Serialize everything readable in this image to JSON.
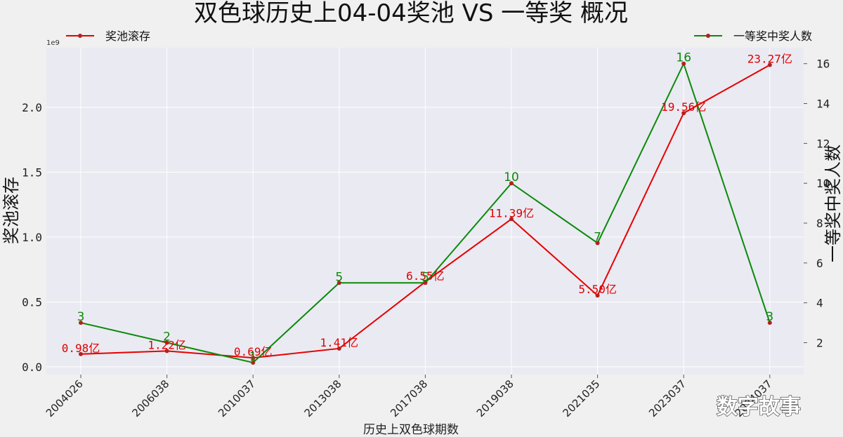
{
  "chart_data": {
    "type": "line",
    "title": "双色球历史上04-04奖池 VS 一等奖 概况",
    "xlabel": "历史上双色球期数",
    "ylabel_left": "奖池滚存",
    "ylabel_right": "一等奖中奖人数",
    "left_axis_scale_note": "1e9",
    "categories": [
      "2004026",
      "2006038",
      "2010037",
      "2013038",
      "2017038",
      "2019038",
      "2021035",
      "2023037",
      "2024037"
    ],
    "series": [
      {
        "name": "奖池滚存",
        "axis": "left",
        "color": "#e60000",
        "values": [
          98000000,
          122000000,
          69000000,
          141000000,
          655000000,
          1139000000,
          550000000,
          1956000000,
          2327000000
        ],
        "labels": [
          "0.98亿",
          "1.22亿",
          "0.69亿",
          "1.41亿",
          "6.55亿",
          "11.39亿",
          "5.50亿",
          "19.56亿",
          "23.27亿"
        ]
      },
      {
        "name": "一等奖中奖人数",
        "axis": "right",
        "color": "#0a8a0a",
        "values": [
          3,
          2,
          1,
          5,
          5,
          10,
          7,
          16,
          3
        ],
        "labels": [
          "3",
          "2",
          "1",
          "5",
          "5",
          "10",
          "7",
          "16",
          "3"
        ]
      }
    ],
    "ylim_left": [
      -60000000,
      2460000000
    ],
    "yticks_left": [
      "0.0",
      "0.5",
      "1.0",
      "1.5",
      "2.0"
    ],
    "ylim_right": [
      0.4,
      16.8
    ],
    "yticks_right": [
      "2",
      "4",
      "6",
      "8",
      "10",
      "12",
      "14",
      "16"
    ],
    "grid": true,
    "legend": [
      "top-left",
      "top-right"
    ]
  },
  "watermark": "数字故事"
}
